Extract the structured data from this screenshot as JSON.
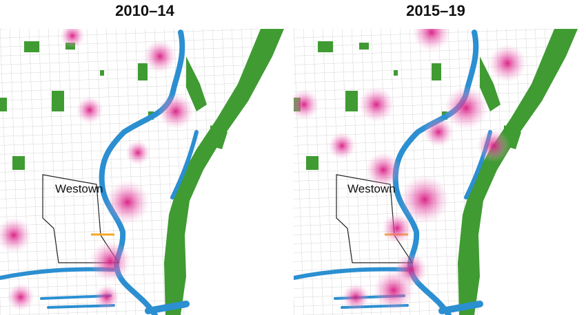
{
  "panels": [
    {
      "title": "2010–14",
      "label": "Westown"
    },
    {
      "title": "2015–19",
      "label": "Westown"
    }
  ]
}
